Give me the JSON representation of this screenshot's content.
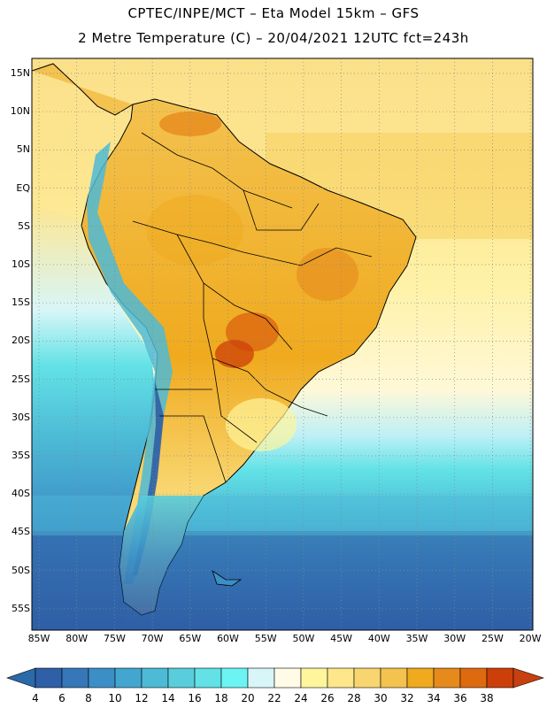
{
  "header": {
    "line1": "CPTEC/INPE/MCT –  Eta Model 15km – GFS",
    "line2": "2 Metre Temperature (C) – 20/04/2021 12UTC fct=243h"
  },
  "map": {
    "lat_labels": [
      "15N",
      "10N",
      "5N",
      "EQ",
      "5S",
      "10S",
      "15S",
      "20S",
      "25S",
      "30S",
      "35S",
      "40S",
      "45S",
      "50S",
      "55S"
    ],
    "lon_labels": [
      "85W",
      "80W",
      "75W",
      "70W",
      "65W",
      "60W",
      "55W",
      "50W",
      "45W",
      "40W",
      "35W",
      "30W",
      "25W",
      "20W"
    ]
  },
  "colorbar": {
    "labels": [
      "4",
      "6",
      "8",
      "10",
      "12",
      "14",
      "16",
      "18",
      "20",
      "22",
      "24",
      "26",
      "28",
      "30",
      "32",
      "34",
      "36",
      "38"
    ],
    "colors": [
      "#2f5fa6",
      "#3577b8",
      "#3b8fc6",
      "#43a6d0",
      "#4dbad6",
      "#58cedc",
      "#62e2e6",
      "#6cf4f4",
      "#d8f6f8",
      "#fffbe6",
      "#fef59c",
      "#fde78a",
      "#f8d56e",
      "#f3c24f",
      "#f0aa1e",
      "#e68a1c",
      "#de6a10",
      "#cc3f08"
    ],
    "low_color": "#2a6aa8",
    "high_color": "#c84010"
  }
}
